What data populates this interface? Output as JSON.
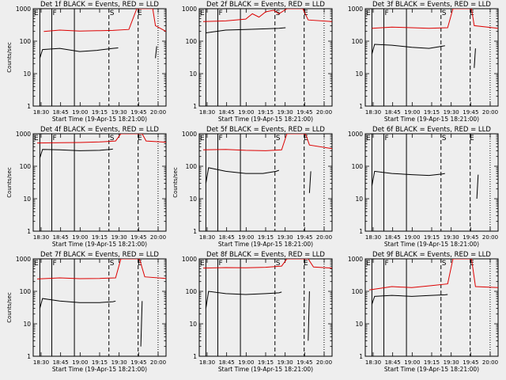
{
  "colors": {
    "background": "#eeeeee",
    "events": "#000000",
    "lld": "#dd0000",
    "axes": "#000000"
  },
  "chart_data": [
    {
      "type": "line",
      "title": "Det 1f BLACK = Events, RED = LLD",
      "ylabel": "Counts/sec",
      "xlabel": "Start Time (19-Apr-15 18:21:00)",
      "y_scale": "log",
      "ylim": [
        1,
        1000
      ],
      "x_tick_labels": [
        "18:30",
        "18:45",
        "19:00",
        "19:15",
        "19:30",
        "19:45",
        "20:00"
      ],
      "y_tick_labels": [
        "1",
        "10",
        "100",
        "1000"
      ],
      "flags": [
        "E",
        "F",
        "S",
        "E"
      ],
      "series": [
        {
          "name": "RED",
          "values": [
            [
              0.08,
              200
            ],
            [
              0.2,
              220
            ],
            [
              0.35,
              205
            ],
            [
              0.48,
              210
            ],
            [
              0.6,
              215
            ],
            [
              0.72,
              230
            ],
            [
              0.78,
              1000
            ],
            [
              0.9,
              1000
            ],
            [
              0.92,
              300
            ],
            [
              1.0,
              200
            ]
          ]
        },
        {
          "name": "BLACK",
          "values": [
            [
              0.05,
              30
            ],
            [
              0.07,
              55
            ],
            [
              0.2,
              60
            ],
            [
              0.35,
              48
            ],
            [
              0.48,
              52
            ],
            [
              0.6,
              60
            ],
            [
              0.64,
              62
            ]
          ]
        },
        {
          "name": "BLACK-2",
          "values": [
            [
              0.92,
              30
            ],
            [
              0.93,
              70
            ]
          ]
        }
      ]
    },
    {
      "type": "line",
      "title": "Det 2f BLACK = Events, RED = LLD",
      "ylabel": "",
      "xlabel": "Start Time (19-Apr-15 18:21:00)",
      "y_scale": "log",
      "ylim": [
        1,
        1000
      ],
      "x_tick_labels": [
        "18:30",
        "18:45",
        "19:00",
        "19:15",
        "19:30",
        "19:45",
        "20:00"
      ],
      "y_tick_labels": [
        "1",
        "10",
        "100",
        "1000"
      ],
      "flags": [
        "E",
        "F",
        "S",
        "E"
      ],
      "series": [
        {
          "name": "RED",
          "values": [
            [
              0.03,
              400
            ],
            [
              0.2,
              420
            ],
            [
              0.35,
              480
            ],
            [
              0.4,
              700
            ],
            [
              0.45,
              550
            ],
            [
              0.5,
              800
            ],
            [
              0.56,
              900
            ],
            [
              0.6,
              700
            ],
            [
              0.66,
              1000
            ],
            [
              0.7,
              1000
            ],
            [
              0.78,
              1000
            ],
            [
              0.82,
              450
            ],
            [
              1.0,
              400
            ]
          ]
        },
        {
          "name": "BLACK",
          "values": [
            [
              0.05,
              180
            ],
            [
              0.2,
              220
            ],
            [
              0.35,
              230
            ],
            [
              0.5,
              240
            ],
            [
              0.6,
              250
            ],
            [
              0.65,
              260
            ]
          ]
        }
      ]
    },
    {
      "type": "line",
      "title": "Det 3f BLACK = Events, RED = LLD",
      "ylabel": "",
      "xlabel": "Start Time (19-Apr-15 18:21:00)",
      "y_scale": "log",
      "ylim": [
        1,
        1000
      ],
      "x_tick_labels": [
        "18:30",
        "18:45",
        "19:00",
        "19:15",
        "19:30",
        "19:45",
        "20:00"
      ],
      "y_tick_labels": [
        "1",
        "10",
        "100",
        "1000"
      ],
      "flags": [
        "E",
        "F",
        "S",
        "E"
      ],
      "series": [
        {
          "name": "RED",
          "values": [
            [
              0.05,
              250
            ],
            [
              0.2,
              270
            ],
            [
              0.35,
              260
            ],
            [
              0.48,
              250
            ],
            [
              0.62,
              260
            ],
            [
              0.66,
              1000
            ],
            [
              0.8,
              1000
            ],
            [
              0.82,
              300
            ],
            [
              1.0,
              250
            ]
          ]
        },
        {
          "name": "BLACK",
          "values": [
            [
              0.05,
              40
            ],
            [
              0.07,
              80
            ],
            [
              0.2,
              75
            ],
            [
              0.35,
              65
            ],
            [
              0.48,
              60
            ],
            [
              0.58,
              70
            ],
            [
              0.6,
              72
            ]
          ]
        },
        {
          "name": "BLACK-2",
          "values": [
            [
              0.82,
              15
            ],
            [
              0.83,
              60
            ]
          ]
        }
      ]
    },
    {
      "type": "line",
      "title": "Det 4f BLACK = Events, RED = LLD",
      "ylabel": "Counts/sec",
      "xlabel": "Start Time (19-Apr-15 18:21:00)",
      "y_scale": "log",
      "ylim": [
        1,
        1000
      ],
      "x_tick_labels": [
        "18:30",
        "18:45",
        "19:00",
        "19:15",
        "19:30",
        "19:45",
        "20:00"
      ],
      "y_tick_labels": [
        "1",
        "10",
        "100",
        "1000"
      ],
      "flags": [
        "E",
        "F",
        "S",
        "E"
      ],
      "series": [
        {
          "name": "RED",
          "values": [
            [
              0.03,
              520
            ],
            [
              0.2,
              530
            ],
            [
              0.35,
              540
            ],
            [
              0.5,
              560
            ],
            [
              0.62,
              600
            ],
            [
              0.66,
              1000
            ],
            [
              0.82,
              1000
            ],
            [
              0.85,
              600
            ],
            [
              1.0,
              550
            ]
          ]
        },
        {
          "name": "BLACK",
          "values": [
            [
              0.05,
              180
            ],
            [
              0.07,
              330
            ],
            [
              0.2,
              320
            ],
            [
              0.35,
              300
            ],
            [
              0.5,
              310
            ],
            [
              0.58,
              330
            ],
            [
              0.6,
              340
            ]
          ]
        }
      ]
    },
    {
      "type": "line",
      "title": "Det 5f BLACK = Events, RED = LLD",
      "ylabel": "Counts/sec",
      "xlabel": "Start Time (19-Apr-15 18:21:00)",
      "y_scale": "log",
      "ylim": [
        1,
        1000
      ],
      "x_tick_labels": [
        "18:30",
        "18:45",
        "19:00",
        "19:15",
        "19:30",
        "19:45",
        "20:00"
      ],
      "y_tick_labels": [
        "1",
        "10",
        "100",
        "1000"
      ],
      "flags": [
        "E",
        "F",
        "S",
        "E"
      ],
      "series": [
        {
          "name": "RED",
          "values": [
            [
              0.03,
              320
            ],
            [
              0.2,
              330
            ],
            [
              0.35,
              310
            ],
            [
              0.5,
              300
            ],
            [
              0.62,
              320
            ],
            [
              0.66,
              1000
            ],
            [
              0.8,
              1000
            ],
            [
              0.83,
              450
            ],
            [
              1.0,
              350
            ]
          ]
        },
        {
          "name": "BLACK",
          "values": [
            [
              0.05,
              30
            ],
            [
              0.07,
              90
            ],
            [
              0.2,
              70
            ],
            [
              0.35,
              60
            ],
            [
              0.48,
              60
            ],
            [
              0.58,
              70
            ],
            [
              0.6,
              75
            ]
          ]
        },
        {
          "name": "BLACK-2",
          "values": [
            [
              0.83,
              15
            ],
            [
              0.84,
              70
            ]
          ]
        }
      ]
    },
    {
      "type": "line",
      "title": "Det 6f BLACK = Events, RED = LLD",
      "ylabel": "",
      "xlabel": "Start Time (19-Apr-15 18:21:00)",
      "y_scale": "log",
      "ylim": [
        1,
        1000
      ],
      "x_tick_labels": [
        "18:30",
        "18:45",
        "19:00",
        "19:15",
        "19:30",
        "19:45",
        "20:00"
      ],
      "y_tick_labels": [
        "1",
        "10",
        "100",
        "1000"
      ],
      "flags": [
        "E",
        "F",
        "S",
        "E"
      ],
      "series": [
        {
          "name": "BLACK",
          "values": [
            [
              0.05,
              25
            ],
            [
              0.07,
              70
            ],
            [
              0.2,
              60
            ],
            [
              0.35,
              55
            ],
            [
              0.48,
              52
            ],
            [
              0.58,
              58
            ],
            [
              0.6,
              60
            ]
          ]
        },
        {
          "name": "BLACK-2",
          "values": [
            [
              0.84,
              10
            ],
            [
              0.85,
              55
            ]
          ]
        }
      ]
    },
    {
      "type": "line",
      "title": "Det 7f BLACK = Events, RED = LLD",
      "ylabel": "Counts/sec",
      "xlabel": "Start Time (19-Apr-15 18:21:00)",
      "y_scale": "log",
      "ylim": [
        1,
        1000
      ],
      "x_tick_labels": [
        "18:30",
        "18:45",
        "19:00",
        "19:15",
        "19:30",
        "19:45",
        "20:00"
      ],
      "y_tick_labels": [
        "1",
        "10",
        "100",
        "1000"
      ],
      "flags": [
        "E",
        "F",
        "S",
        "E"
      ],
      "series": [
        {
          "name": "RED",
          "values": [
            [
              0.03,
              240
            ],
            [
              0.2,
              260
            ],
            [
              0.35,
              245
            ],
            [
              0.5,
              250
            ],
            [
              0.62,
              260
            ],
            [
              0.66,
              1000
            ],
            [
              0.8,
              1000
            ],
            [
              0.84,
              280
            ],
            [
              1.0,
              250
            ]
          ]
        },
        {
          "name": "BLACK",
          "values": [
            [
              0.05,
              30
            ],
            [
              0.07,
              60
            ],
            [
              0.2,
              50
            ],
            [
              0.35,
              45
            ],
            [
              0.5,
              45
            ],
            [
              0.6,
              48
            ],
            [
              0.62,
              50
            ]
          ]
        },
        {
          "name": "BLACK-2",
          "values": [
            [
              0.81,
              2
            ],
            [
              0.82,
              50
            ]
          ]
        }
      ]
    },
    {
      "type": "line",
      "title": "Det 8f BLACK = Events, RED = LLD",
      "ylabel": "",
      "xlabel": "Start Time (19-Apr-15 18:21:00)",
      "y_scale": "log",
      "ylim": [
        1,
        1000
      ],
      "x_tick_labels": [
        "18:30",
        "18:45",
        "19:00",
        "19:15",
        "19:30",
        "19:45",
        "20:00"
      ],
      "y_tick_labels": [
        "1",
        "10",
        "100",
        "1000"
      ],
      "flags": [
        "E",
        "F",
        "S",
        "E"
      ],
      "series": [
        {
          "name": "RED",
          "values": [
            [
              0.03,
              520
            ],
            [
              0.2,
              540
            ],
            [
              0.35,
              530
            ],
            [
              0.5,
              550
            ],
            [
              0.62,
              600
            ],
            [
              0.66,
              1000
            ],
            [
              0.82,
              1000
            ],
            [
              0.86,
              560
            ],
            [
              1.0,
              520
            ]
          ]
        },
        {
          "name": "BLACK",
          "values": [
            [
              0.05,
              30
            ],
            [
              0.07,
              100
            ],
            [
              0.2,
              85
            ],
            [
              0.35,
              80
            ],
            [
              0.5,
              85
            ],
            [
              0.6,
              90
            ],
            [
              0.62,
              95
            ]
          ]
        },
        {
          "name": "BLACK-2",
          "values": [
            [
              0.82,
              3
            ],
            [
              0.83,
              100
            ]
          ]
        }
      ]
    },
    {
      "type": "line",
      "title": "Det 9f BLACK = Events, RED = LLD",
      "ylabel": "",
      "xlabel": "Start Time (19-Apr-15 18:21:00)",
      "y_scale": "log",
      "ylim": [
        1,
        1000
      ],
      "x_tick_labels": [
        "18:30",
        "18:45",
        "19:00",
        "19:15",
        "19:30",
        "19:45",
        "20:00"
      ],
      "y_tick_labels": [
        "1",
        "10",
        "100",
        "1000"
      ],
      "flags": [
        "E",
        "F",
        "S",
        "E"
      ],
      "series": [
        {
          "name": "RED",
          "values": [
            [
              0.03,
              110
            ],
            [
              0.2,
              140
            ],
            [
              0.35,
              130
            ],
            [
              0.5,
              150
            ],
            [
              0.62,
              170
            ],
            [
              0.66,
              1000
            ],
            [
              0.8,
              1000
            ],
            [
              0.83,
              140
            ],
            [
              1.0,
              130
            ]
          ]
        },
        {
          "name": "BLACK",
          "values": [
            [
              0.05,
              40
            ],
            [
              0.07,
              70
            ],
            [
              0.2,
              75
            ],
            [
              0.35,
              70
            ],
            [
              0.5,
              75
            ],
            [
              0.6,
              78
            ],
            [
              0.62,
              80
            ]
          ]
        }
      ]
    }
  ]
}
